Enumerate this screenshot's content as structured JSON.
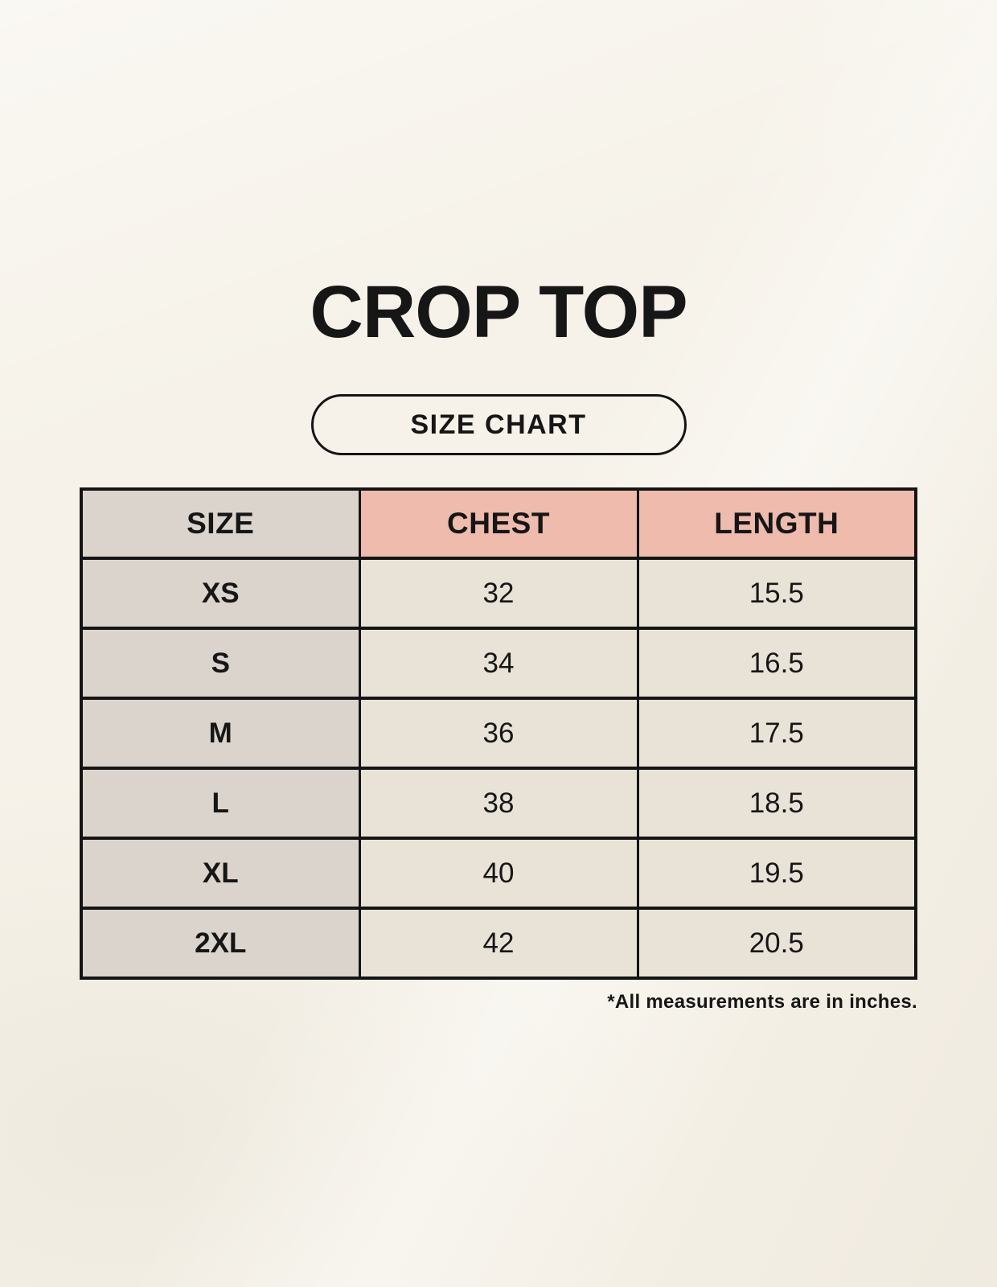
{
  "page": {
    "title": "CROP TOP",
    "size_chart_badge": "SIZE CHART",
    "footnote": "*All measurements are in inches."
  },
  "chart_data": {
    "type": "table",
    "title": "CROP TOP",
    "columns": [
      "SIZE",
      "CHEST",
      "LENGTH"
    ],
    "rows": [
      [
        "XS",
        "32",
        "15.5"
      ],
      [
        "S",
        "34",
        "16.5"
      ],
      [
        "M",
        "36",
        "17.5"
      ],
      [
        "L",
        "38",
        "18.5"
      ],
      [
        "XL",
        "40",
        "19.5"
      ],
      [
        "2XL",
        "42",
        "20.5"
      ]
    ],
    "units": "inches"
  },
  "colors": {
    "page-bg": "#F6F2E9",
    "header-pink": "#EEBBAD",
    "label-taupe": "#DBD4CD",
    "cell-cream": "#E9E2D7",
    "border-black": "#141414",
    "text-black": "#161616"
  }
}
